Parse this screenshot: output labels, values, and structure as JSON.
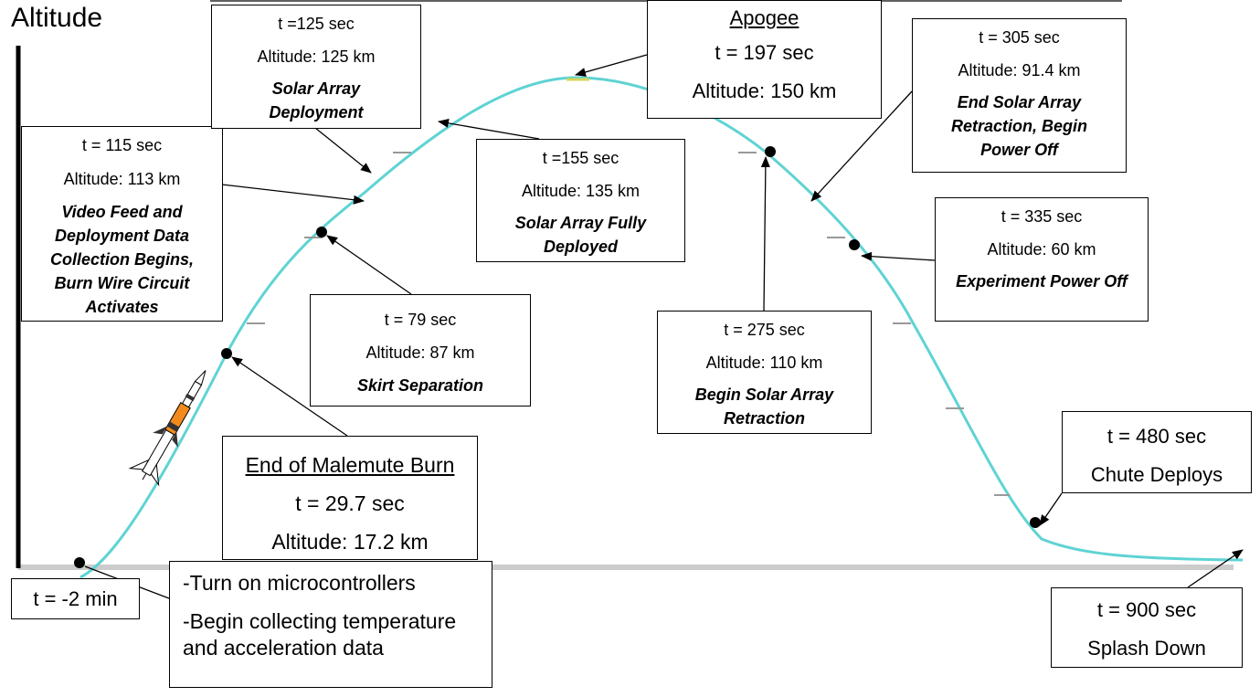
{
  "y_axis_label": "Altitude",
  "colors": {
    "trajectory": "#5fd3d3",
    "ground": "#cccccc",
    "axis": "#000000",
    "rocket_body": "#f28a1e"
  },
  "icons": {
    "rocket": "rocket-icon"
  },
  "events": {
    "prelaunch": {
      "time": "t = -2 min",
      "lines": [
        "-Turn on microcontrollers",
        "-Begin collecting temperature and acceleration data"
      ]
    },
    "burnout": {
      "title": "End of Malemute Burn",
      "time": "t = 29.7 sec",
      "altitude": "Altitude: 17.2 km"
    },
    "skirt": {
      "time": "t = 79 sec",
      "altitude": "Altitude: 87  km",
      "event": "Skirt Separation"
    },
    "video": {
      "time": "t = 115 sec",
      "altitude": "Altitude: 113 km",
      "event": "Video Feed and Deployment Data Collection Begins, Burn Wire Circuit Activates"
    },
    "deploy": {
      "time": "t =125 sec",
      "altitude": "Altitude: 125  km",
      "event": "Solar Array Deployment"
    },
    "deployed": {
      "time": "t =155 sec",
      "altitude": "Altitude: 135  km",
      "event": "Solar Array Fully Deployed"
    },
    "apogee": {
      "title": "Apogee",
      "time": "t = 197 sec",
      "altitude": "Altitude: 150 km"
    },
    "retract_begin": {
      "time": "t = 275 sec",
      "altitude": "Altitude: 110  km",
      "event": "Begin Solar Array Retraction"
    },
    "retract_end": {
      "time": "t = 305 sec",
      "altitude": "Altitude: 91.4  km",
      "event": "End Solar Array Retraction, Begin Power Off"
    },
    "experiment_off": {
      "time": "t = 335 sec",
      "altitude": "Altitude: 60  km",
      "event": "Experiment Power Off"
    },
    "chute": {
      "time": "t = 480 sec",
      "event": "Chute Deploys"
    },
    "splash": {
      "time": "t = 900 sec",
      "event": "Splash Down"
    }
  }
}
